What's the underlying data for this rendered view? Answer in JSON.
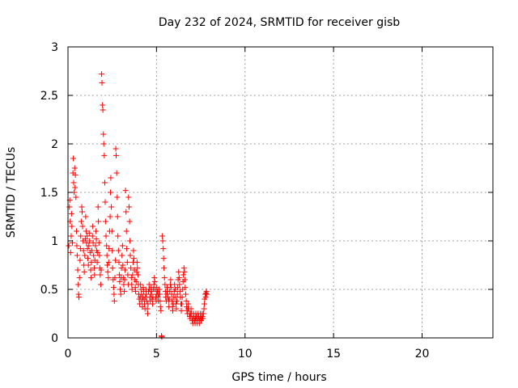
{
  "chart_data": {
    "type": "scatter",
    "title": "Day 232 of 2024, SRMTID for receiver gisb",
    "xlabel": "GPS time / hours",
    "ylabel": "SRMTID / TECUs",
    "xlim": [
      0,
      24
    ],
    "ylim": [
      0,
      3
    ],
    "xticks": [
      "0",
      "5",
      "10",
      "15",
      "20"
    ],
    "yticks": [
      "0",
      "0.5",
      "1",
      "1.5",
      "2",
      "2.5",
      "3"
    ],
    "grid": true,
    "marker": "+",
    "colors": {
      "series": "#ff0000",
      "grid": "#a0a0a0",
      "axis": "#000000"
    },
    "series": [
      {
        "name": "SRMTID",
        "points": [
          [
            0.05,
            0.95
          ],
          [
            0.08,
            1.35
          ],
          [
            0.1,
            1.42
          ],
          [
            0.12,
            1.2
          ],
          [
            0.15,
            0.88
          ],
          [
            0.18,
            1.05
          ],
          [
            0.2,
            1.28
          ],
          [
            0.22,
            1.15
          ],
          [
            0.25,
            0.98
          ],
          [
            0.28,
            1.7
          ],
          [
            0.3,
            1.85
          ],
          [
            0.32,
            1.6
          ],
          [
            0.35,
            1.5
          ],
          [
            0.38,
            1.75
          ],
          [
            0.4,
            1.55
          ],
          [
            0.42,
            1.68
          ],
          [
            0.45,
            1.45
          ],
          [
            0.48,
            1.1
          ],
          [
            0.5,
            0.95
          ],
          [
            0.52,
            0.85
          ],
          [
            0.55,
            0.7
          ],
          [
            0.58,
            0.55
          ],
          [
            0.6,
            0.45
          ],
          [
            0.62,
            0.42
          ],
          [
            0.65,
            0.62
          ],
          [
            0.68,
            0.8
          ],
          [
            0.7,
            0.92
          ],
          [
            0.72,
            1.05
          ],
          [
            0.75,
            1.2
          ],
          [
            0.78,
            1.35
          ],
          [
            0.8,
            1.3
          ],
          [
            0.82,
            1.15
          ],
          [
            0.85,
            1.0
          ],
          [
            0.88,
            0.9
          ],
          [
            0.9,
            0.75
          ],
          [
            0.92,
            0.68
          ],
          [
            0.95,
            0.85
          ],
          [
            0.98,
            1.02
          ],
          [
            1.0,
            1.25
          ],
          [
            1.02,
            1.1
          ],
          [
            1.05,
            0.98
          ],
          [
            1.08,
            1.05
          ],
          [
            1.1,
            0.92
          ],
          [
            1.12,
            0.82
          ],
          [
            1.15,
            0.75
          ],
          [
            1.18,
            0.95
          ],
          [
            1.2,
            1.08
          ],
          [
            1.22,
            1.0
          ],
          [
            1.25,
            0.88
          ],
          [
            1.28,
            0.7
          ],
          [
            1.3,
            0.62
          ],
          [
            1.32,
            0.78
          ],
          [
            1.35,
            0.9
          ],
          [
            1.38,
            1.05
          ],
          [
            1.4,
            1.15
          ],
          [
            1.42,
            0.98
          ],
          [
            1.45,
            0.85
          ],
          [
            1.48,
            0.72
          ],
          [
            1.5,
            0.65
          ],
          [
            1.52,
            0.8
          ],
          [
            1.55,
            0.95
          ],
          [
            1.58,
            1.1
          ],
          [
            1.6,
            1.02
          ],
          [
            1.62,
            0.9
          ],
          [
            1.65,
            0.78
          ],
          [
            1.68,
            0.88
          ],
          [
            1.7,
            1.35
          ],
          [
            1.72,
            1.2
          ],
          [
            1.75,
            0.98
          ],
          [
            1.78,
            0.85
          ],
          [
            1.8,
            0.72
          ],
          [
            1.82,
            0.65
          ],
          [
            1.85,
            0.55
          ],
          [
            1.88,
            0.7
          ],
          [
            1.9,
            2.72
          ],
          [
            1.92,
            2.63
          ],
          [
            1.95,
            2.4
          ],
          [
            1.97,
            2.35
          ],
          [
            2.0,
            2.1
          ],
          [
            2.02,
            2.0
          ],
          [
            2.05,
            1.88
          ],
          [
            2.08,
            1.6
          ],
          [
            2.1,
            1.4
          ],
          [
            2.12,
            1.2
          ],
          [
            2.15,
            1.05
          ],
          [
            2.18,
            0.95
          ],
          [
            2.2,
            0.85
          ],
          [
            2.22,
            0.75
          ],
          [
            2.25,
            0.68
          ],
          [
            2.28,
            0.62
          ],
          [
            2.3,
            0.78
          ],
          [
            2.32,
            0.92
          ],
          [
            2.35,
            1.1
          ],
          [
            2.38,
            1.25
          ],
          [
            2.4,
            1.5
          ],
          [
            2.42,
            1.65
          ],
          [
            2.45,
            1.35
          ],
          [
            2.48,
            1.1
          ],
          [
            2.5,
            0.9
          ],
          [
            2.52,
            0.72
          ],
          [
            2.55,
            0.6
          ],
          [
            2.58,
            0.52
          ],
          [
            2.6,
            0.45
          ],
          [
            2.62,
            0.38
          ],
          [
            2.65,
            0.62
          ],
          [
            2.68,
            0.8
          ],
          [
            2.7,
            1.95
          ],
          [
            2.72,
            1.88
          ],
          [
            2.75,
            1.7
          ],
          [
            2.78,
            1.45
          ],
          [
            2.8,
            1.25
          ],
          [
            2.82,
            1.05
          ],
          [
            2.85,
            0.9
          ],
          [
            2.88,
            0.78
          ],
          [
            2.9,
            0.65
          ],
          [
            2.92,
            0.58
          ],
          [
            2.95,
            0.5
          ],
          [
            2.98,
            0.45
          ],
          [
            3.0,
            0.62
          ],
          [
            3.02,
            0.72
          ],
          [
            3.05,
            0.85
          ],
          [
            3.08,
            0.95
          ],
          [
            3.1,
            0.75
          ],
          [
            3.12,
            0.62
          ],
          [
            3.15,
            0.55
          ],
          [
            3.18,
            0.48
          ],
          [
            3.2,
            0.6
          ],
          [
            3.22,
            0.7
          ],
          [
            3.25,
            1.52
          ],
          [
            3.28,
            1.3
          ],
          [
            3.3,
            1.1
          ],
          [
            3.32,
            0.92
          ],
          [
            3.35,
            0.78
          ],
          [
            3.38,
            0.65
          ],
          [
            3.4,
            0.55
          ],
          [
            3.42,
            1.45
          ],
          [
            3.45,
            1.35
          ],
          [
            3.48,
            1.2
          ],
          [
            3.5,
            1.0
          ],
          [
            3.52,
            0.85
          ],
          [
            3.55,
            0.72
          ],
          [
            3.58,
            0.62
          ],
          [
            3.6,
            0.55
          ],
          [
            3.62,
            0.5
          ],
          [
            3.65,
            0.65
          ],
          [
            3.68,
            0.78
          ],
          [
            3.7,
            0.9
          ],
          [
            3.72,
            0.82
          ],
          [
            3.75,
            0.7
          ],
          [
            3.78,
            0.6
          ],
          [
            3.8,
            0.52
          ],
          [
            3.82,
            0.48
          ],
          [
            3.85,
            0.58
          ],
          [
            3.88,
            0.68
          ],
          [
            3.9,
            0.78
          ],
          [
            3.92,
            0.72
          ],
          [
            3.95,
            0.65
          ],
          [
            3.98,
            0.55
          ],
          [
            4.0,
            0.45
          ],
          [
            4.02,
            0.4
          ],
          [
            4.05,
            0.35
          ],
          [
            4.08,
            0.42
          ],
          [
            4.1,
            0.55
          ],
          [
            4.12,
            0.5
          ],
          [
            4.15,
            0.45
          ],
          [
            4.18,
            0.38
          ],
          [
            4.2,
            0.32
          ],
          [
            4.22,
            0.42
          ],
          [
            4.25,
            0.52
          ],
          [
            4.28,
            0.48
          ],
          [
            4.3,
            0.4
          ],
          [
            4.32,
            0.35
          ],
          [
            4.35,
            0.3
          ],
          [
            4.38,
            0.42
          ],
          [
            4.4,
            0.5
          ],
          [
            4.42,
            0.45
          ],
          [
            4.45,
            0.38
          ],
          [
            4.48,
            0.3
          ],
          [
            4.5,
            0.25
          ],
          [
            4.52,
            0.35
          ],
          [
            4.55,
            0.48
          ],
          [
            4.58,
            0.55
          ],
          [
            4.6,
            0.5
          ],
          [
            4.62,
            0.42
          ],
          [
            4.65,
            0.38
          ],
          [
            4.68,
            0.45
          ],
          [
            4.7,
            0.52
          ],
          [
            4.72,
            0.48
          ],
          [
            4.75,
            0.4
          ],
          [
            4.78,
            0.35
          ],
          [
            4.8,
            0.42
          ],
          [
            4.82,
            0.5
          ],
          [
            4.85,
            0.55
          ],
          [
            4.88,
            0.62
          ],
          [
            4.9,
            0.58
          ],
          [
            4.92,
            0.5
          ],
          [
            4.95,
            0.42
          ],
          [
            4.98,
            0.38
          ],
          [
            5.0,
            0.45
          ],
          [
            5.02,
            0.52
          ],
          [
            5.05,
            0.48
          ],
          [
            5.08,
            0.42
          ],
          [
            5.1,
            0.38
          ],
          [
            5.12,
            0.45
          ],
          [
            5.15,
            0.5
          ],
          [
            5.18,
            0.45
          ],
          [
            5.2,
            0.38
          ],
          [
            5.22,
            0.32
          ],
          [
            5.25,
            0.28
          ],
          [
            5.28,
            0.02
          ],
          [
            5.3,
            0.01
          ],
          [
            5.32,
            1.05
          ],
          [
            5.35,
            1.0
          ],
          [
            5.38,
            0.92
          ],
          [
            5.4,
            0.82
          ],
          [
            5.42,
            0.72
          ],
          [
            5.45,
            0.62
          ],
          [
            5.48,
            0.55
          ],
          [
            5.5,
            0.48
          ],
          [
            5.52,
            0.42
          ],
          [
            5.55,
            0.38
          ],
          [
            5.58,
            0.45
          ],
          [
            5.6,
            0.52
          ],
          [
            5.62,
            0.48
          ],
          [
            5.65,
            0.42
          ],
          [
            5.68,
            0.38
          ],
          [
            5.7,
            0.32
          ],
          [
            5.72,
            0.4
          ],
          [
            5.75,
            0.48
          ],
          [
            5.78,
            0.55
          ],
          [
            5.8,
            0.6
          ],
          [
            5.82,
            0.52
          ],
          [
            5.85,
            0.45
          ],
          [
            5.88,
            0.38
          ],
          [
            5.9,
            0.32
          ],
          [
            5.92,
            0.28
          ],
          [
            5.95,
            0.35
          ],
          [
            5.98,
            0.42
          ],
          [
            6.0,
            0.48
          ],
          [
            6.02,
            0.55
          ],
          [
            6.05,
            0.5
          ],
          [
            6.08,
            0.42
          ],
          [
            6.1,
            0.35
          ],
          [
            6.12,
            0.3
          ],
          [
            6.15,
            0.38
          ],
          [
            6.18,
            0.45
          ],
          [
            6.2,
            0.52
          ],
          [
            6.22,
            0.6
          ],
          [
            6.25,
            0.68
          ],
          [
            6.28,
            0.62
          ],
          [
            6.3,
            0.55
          ],
          [
            6.32,
            0.48
          ],
          [
            6.35,
            0.42
          ],
          [
            6.38,
            0.35
          ],
          [
            6.4,
            0.28
          ],
          [
            6.42,
            0.35
          ],
          [
            6.45,
            0.42
          ],
          [
            6.48,
            0.5
          ],
          [
            6.5,
            0.58
          ],
          [
            6.52,
            0.65
          ],
          [
            6.55,
            0.72
          ],
          [
            6.58,
            0.68
          ],
          [
            6.6,
            0.6
          ],
          [
            6.62,
            0.52
          ],
          [
            6.65,
            0.45
          ],
          [
            6.68,
            0.38
          ],
          [
            6.7,
            0.32
          ],
          [
            6.72,
            0.28
          ],
          [
            6.75,
            0.25
          ],
          [
            6.78,
            0.3
          ],
          [
            6.8,
            0.35
          ],
          [
            6.82,
            0.3
          ],
          [
            6.85,
            0.25
          ],
          [
            6.88,
            0.22
          ],
          [
            6.9,
            0.2
          ],
          [
            6.92,
            0.25
          ],
          [
            6.95,
            0.3
          ],
          [
            6.98,
            0.25
          ],
          [
            7.0,
            0.2
          ],
          [
            7.02,
            0.18
          ],
          [
            7.05,
            0.15
          ],
          [
            7.08,
            0.2
          ],
          [
            7.1,
            0.25
          ],
          [
            7.12,
            0.22
          ],
          [
            7.15,
            0.18
          ],
          [
            7.18,
            0.15
          ],
          [
            7.2,
            0.2
          ],
          [
            7.22,
            0.25
          ],
          [
            7.25,
            0.22
          ],
          [
            7.28,
            0.18
          ],
          [
            7.3,
            0.15
          ],
          [
            7.32,
            0.2
          ],
          [
            7.35,
            0.25
          ],
          [
            7.38,
            0.22
          ],
          [
            7.4,
            0.18
          ],
          [
            7.42,
            0.15
          ],
          [
            7.45,
            0.2
          ],
          [
            7.48,
            0.25
          ],
          [
            7.5,
            0.22
          ],
          [
            7.52,
            0.18
          ],
          [
            7.55,
            0.2
          ],
          [
            7.58,
            0.25
          ],
          [
            7.6,
            0.22
          ],
          [
            7.62,
            0.2
          ],
          [
            7.65,
            0.25
          ],
          [
            7.68,
            0.3
          ],
          [
            7.7,
            0.35
          ],
          [
            7.72,
            0.4
          ],
          [
            7.75,
            0.45
          ],
          [
            7.78,
            0.42
          ],
          [
            7.8,
            0.46
          ],
          [
            7.82,
            0.48
          ],
          [
            7.85,
            0.45
          ]
        ]
      }
    ]
  }
}
